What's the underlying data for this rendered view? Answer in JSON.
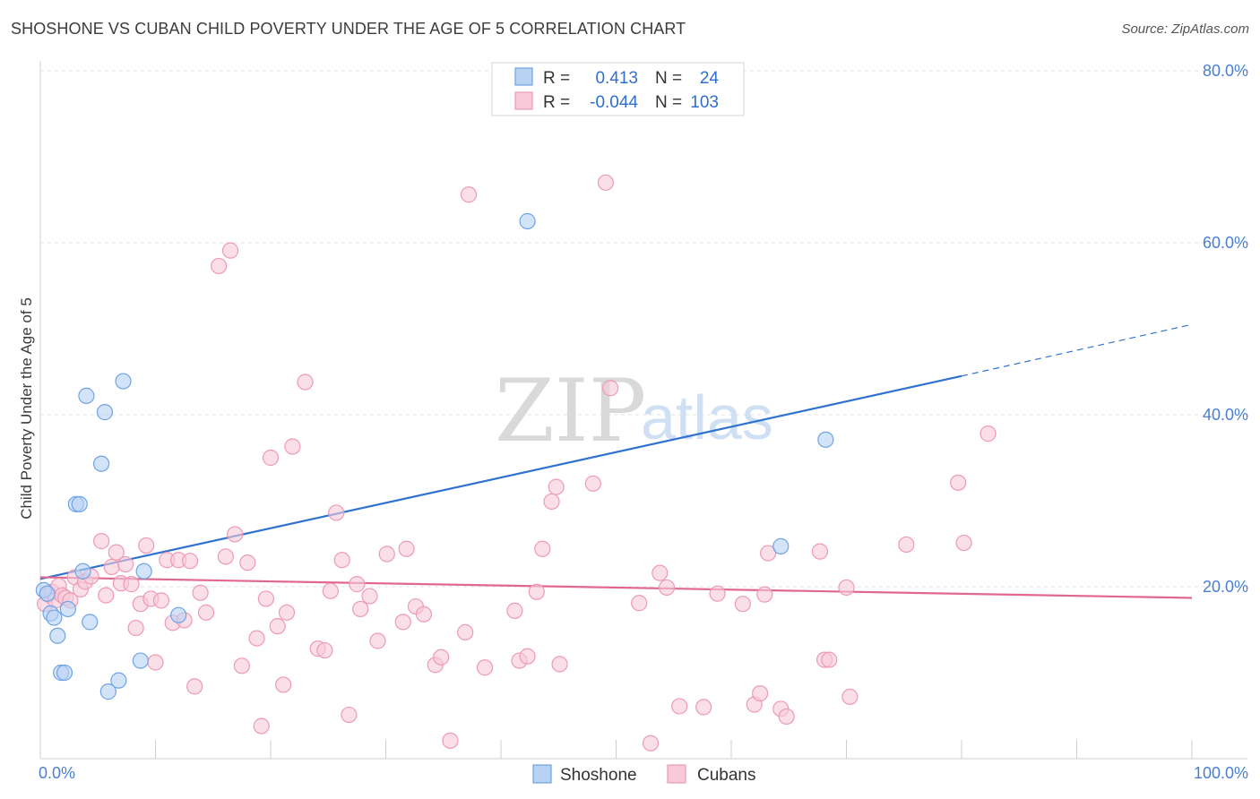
{
  "title": "SHOSHONE VS CUBAN CHILD POVERTY UNDER THE AGE OF 5 CORRELATION CHART",
  "source": "Source: ZipAtlas.com",
  "watermark": {
    "zip": "ZIP",
    "atlas": "atlas"
  },
  "chart_data": {
    "type": "scatter",
    "title": "SHOSHONE VS CUBAN CHILD POVERTY UNDER THE AGE OF 5 CORRELATION CHART",
    "xlabel": "",
    "ylabel": "Child Poverty Under the Age of 5",
    "xlim": [
      0,
      100
    ],
    "ylim": [
      0,
      80
    ],
    "x_tick_labels": [
      "0.0%",
      "100.0%"
    ],
    "y_ticks": [
      20,
      40,
      60,
      80
    ],
    "y_tick_labels": [
      "20.0%",
      "40.0%",
      "60.0%",
      "80.0%"
    ],
    "grid": true,
    "legend_position": "top-center",
    "legend": [
      {
        "name": "Shoshone",
        "r_label": "R =",
        "r_value": "0.413",
        "n_label": "N =",
        "n_value": "24"
      },
      {
        "name": "Cubans",
        "r_label": "R =",
        "r_value": "-0.044",
        "n_label": "N =",
        "n_value": "103"
      }
    ],
    "series": [
      {
        "name": "Shoshone",
        "color": "#6fa3e6",
        "fill": "#b7d2f3",
        "trend": {
          "x0": 0,
          "y0": 20.9,
          "x1": 80,
          "y1": 44.5,
          "dash_to_x": 100,
          "dash_to_y": 50.5,
          "color": "#2f72cf"
        },
        "points": [
          [
            0.3,
            19.6
          ],
          [
            0.6,
            19.2
          ],
          [
            0.9,
            16.9
          ],
          [
            1.2,
            16.4
          ],
          [
            1.5,
            14.3
          ],
          [
            1.8,
            10.0
          ],
          [
            2.1,
            10.0
          ],
          [
            2.4,
            17.4
          ],
          [
            3.1,
            29.6
          ],
          [
            3.4,
            29.6
          ],
          [
            3.7,
            21.8
          ],
          [
            4.0,
            42.2
          ],
          [
            4.3,
            15.9
          ],
          [
            5.3,
            34.3
          ],
          [
            5.6,
            40.3
          ],
          [
            5.9,
            7.8
          ],
          [
            6.8,
            9.1
          ],
          [
            7.2,
            43.9
          ],
          [
            8.7,
            11.4
          ],
          [
            9.0,
            21.8
          ],
          [
            12.0,
            16.7
          ],
          [
            42.3,
            62.5
          ],
          [
            64.3,
            24.7
          ],
          [
            68.2,
            37.1
          ]
        ]
      },
      {
        "name": "Cubans",
        "color": "#ee9ab4",
        "fill": "#f8c9d8",
        "trend": {
          "x0": 0,
          "y0": 21.1,
          "x1": 100,
          "y1": 18.7,
          "color": "#e0688f"
        },
        "points": [
          [
            0.4,
            18.0
          ],
          [
            0.7,
            19.1
          ],
          [
            1.0,
            19.4
          ],
          [
            1.3,
            18.4
          ],
          [
            1.6,
            20.1
          ],
          [
            1.9,
            19.0
          ],
          [
            2.2,
            18.7
          ],
          [
            2.6,
            18.4
          ],
          [
            3.0,
            21.1
          ],
          [
            3.5,
            19.7
          ],
          [
            3.9,
            20.6
          ],
          [
            4.4,
            21.2
          ],
          [
            5.3,
            25.3
          ],
          [
            5.7,
            19.0
          ],
          [
            6.2,
            22.3
          ],
          [
            6.6,
            24.0
          ],
          [
            7.0,
            20.4
          ],
          [
            7.4,
            22.6
          ],
          [
            7.9,
            20.3
          ],
          [
            8.3,
            15.2
          ],
          [
            8.7,
            18.0
          ],
          [
            9.2,
            24.8
          ],
          [
            9.6,
            18.6
          ],
          [
            10.0,
            11.2
          ],
          [
            10.5,
            18.4
          ],
          [
            11.0,
            23.1
          ],
          [
            11.5,
            15.8
          ],
          [
            12.0,
            23.1
          ],
          [
            12.5,
            16.1
          ],
          [
            13.0,
            23.0
          ],
          [
            13.4,
            8.4
          ],
          [
            13.9,
            19.3
          ],
          [
            14.4,
            17.0
          ],
          [
            15.5,
            57.3
          ],
          [
            16.1,
            23.5
          ],
          [
            16.5,
            59.1
          ],
          [
            16.9,
            26.1
          ],
          [
            17.5,
            10.8
          ],
          [
            18.0,
            22.8
          ],
          [
            18.8,
            14.0
          ],
          [
            19.2,
            3.8
          ],
          [
            19.6,
            18.6
          ],
          [
            20.0,
            35.0
          ],
          [
            20.6,
            15.4
          ],
          [
            21.1,
            8.6
          ],
          [
            21.4,
            17.0
          ],
          [
            21.9,
            36.3
          ],
          [
            23.0,
            43.8
          ],
          [
            24.1,
            12.8
          ],
          [
            24.7,
            12.6
          ],
          [
            25.2,
            19.5
          ],
          [
            25.7,
            28.6
          ],
          [
            26.2,
            23.1
          ],
          [
            26.8,
            5.1
          ],
          [
            27.5,
            20.3
          ],
          [
            27.8,
            17.4
          ],
          [
            28.6,
            18.9
          ],
          [
            29.3,
            13.7
          ],
          [
            30.1,
            23.8
          ],
          [
            31.5,
            15.9
          ],
          [
            31.8,
            24.4
          ],
          [
            32.6,
            17.7
          ],
          [
            33.3,
            16.8
          ],
          [
            34.3,
            10.9
          ],
          [
            34.8,
            11.8
          ],
          [
            35.6,
            2.1
          ],
          [
            36.9,
            14.7
          ],
          [
            37.2,
            65.6
          ],
          [
            38.6,
            10.6
          ],
          [
            41.2,
            17.2
          ],
          [
            41.6,
            11.4
          ],
          [
            42.3,
            11.9
          ],
          [
            43.1,
            19.4
          ],
          [
            43.6,
            24.4
          ],
          [
            44.4,
            29.9
          ],
          [
            44.8,
            31.6
          ],
          [
            45.1,
            11.0
          ],
          [
            48.0,
            32.0
          ],
          [
            49.1,
            67.0
          ],
          [
            49.5,
            43.1
          ],
          [
            52.0,
            18.1
          ],
          [
            53.0,
            1.8
          ],
          [
            53.8,
            21.6
          ],
          [
            54.4,
            19.9
          ],
          [
            55.5,
            6.1
          ],
          [
            57.6,
            6.0
          ],
          [
            58.8,
            19.2
          ],
          [
            61.0,
            18.0
          ],
          [
            62.0,
            6.3
          ],
          [
            62.5,
            7.6
          ],
          [
            62.9,
            19.1
          ],
          [
            63.2,
            23.9
          ],
          [
            64.3,
            5.8
          ],
          [
            64.8,
            4.9
          ],
          [
            67.7,
            24.1
          ],
          [
            68.1,
            11.5
          ],
          [
            68.5,
            11.5
          ],
          [
            70.0,
            19.9
          ],
          [
            70.3,
            7.2
          ],
          [
            75.2,
            24.9
          ],
          [
            79.7,
            32.1
          ],
          [
            80.2,
            25.1
          ],
          [
            82.3,
            37.8
          ]
        ]
      }
    ]
  }
}
